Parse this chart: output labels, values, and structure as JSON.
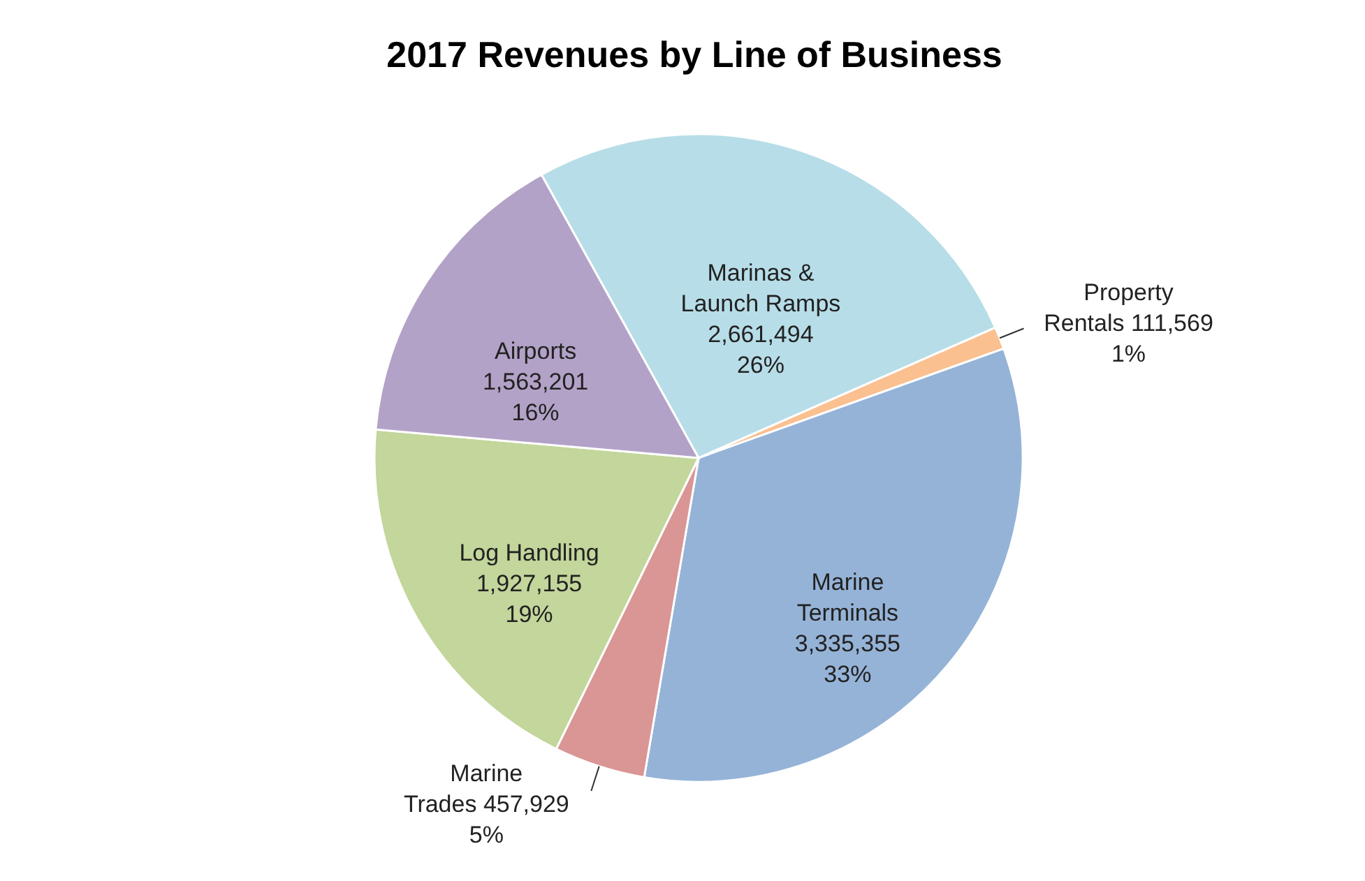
{
  "chart_data": {
    "type": "pie",
    "title": "2017 Revenues by Line of Business",
    "categories": [
      "Marinas &\nLaunch Ramps",
      "Property\nRentals",
      "Marine\nTerminals",
      "Marine\nTrades",
      "Log Handling",
      "Airports"
    ],
    "values": [
      2661494,
      111569,
      3335355,
      457929,
      1927155,
      1563201
    ],
    "value_labels": [
      "2,661,494\n26%",
      "111,569\n1%",
      "3,335,355\n33%",
      "457,929\n5%",
      "1,927,155\n19%",
      "1,563,201\n16%"
    ],
    "colors": [
      "#b7dde8",
      "#fac090",
      "#95b3d7",
      "#d99694",
      "#c3d69b",
      "#b3a2c7"
    ]
  }
}
